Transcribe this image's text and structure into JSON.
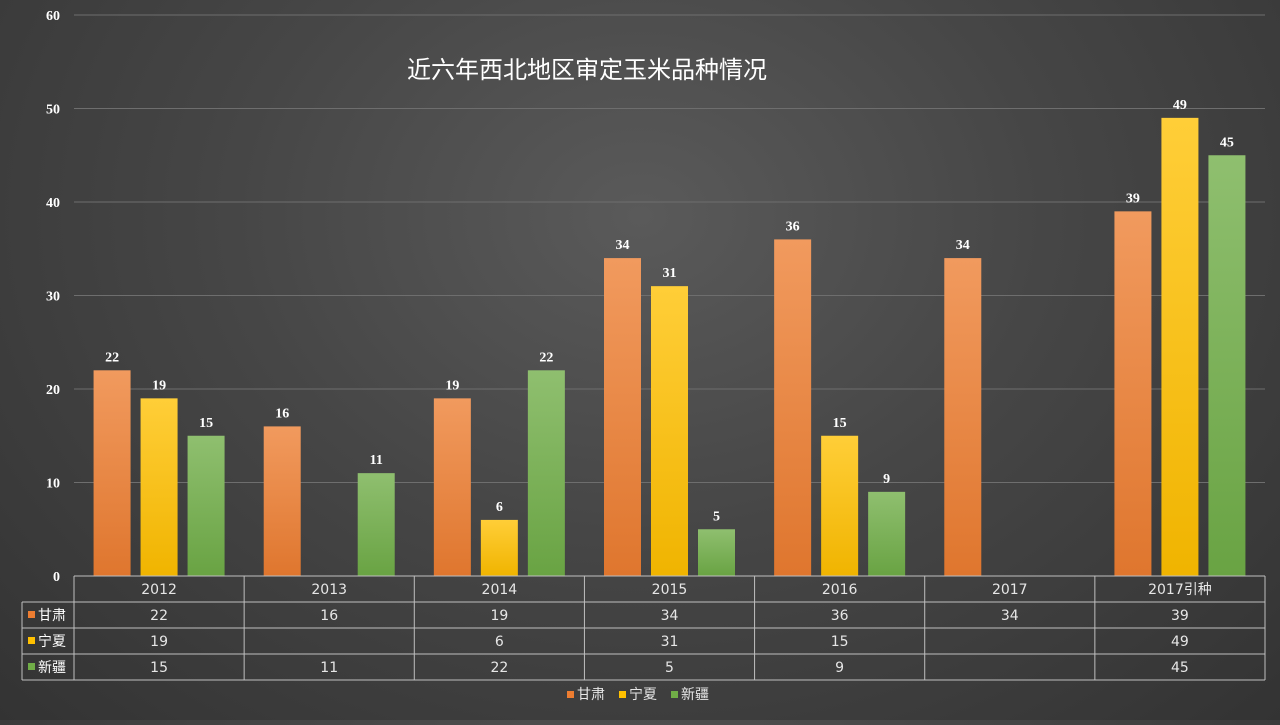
{
  "chart_data": {
    "type": "bar",
    "title": "近六年西北地区审定玉米品种情况",
    "categories": [
      "2012",
      "2013",
      "2014",
      "2015",
      "2016",
      "2017",
      "2017引种"
    ],
    "series": [
      {
        "name": "甘肃",
        "color": "#ed7d31",
        "values": [
          22,
          16,
          19,
          34,
          36,
          34,
          39
        ]
      },
      {
        "name": "宁夏",
        "color": "#ffc000",
        "values": [
          19,
          null,
          6,
          31,
          15,
          null,
          49
        ]
      },
      {
        "name": "新疆",
        "color": "#70ad47",
        "values": [
          15,
          11,
          22,
          5,
          9,
          null,
          45
        ]
      }
    ],
    "ylim": [
      0,
      60
    ],
    "yticks": [
      0,
      10,
      20,
      30,
      40,
      50,
      60
    ],
    "grid": true,
    "data_table": true,
    "legend_position": "bottom",
    "xlabel": "",
    "ylabel": ""
  }
}
